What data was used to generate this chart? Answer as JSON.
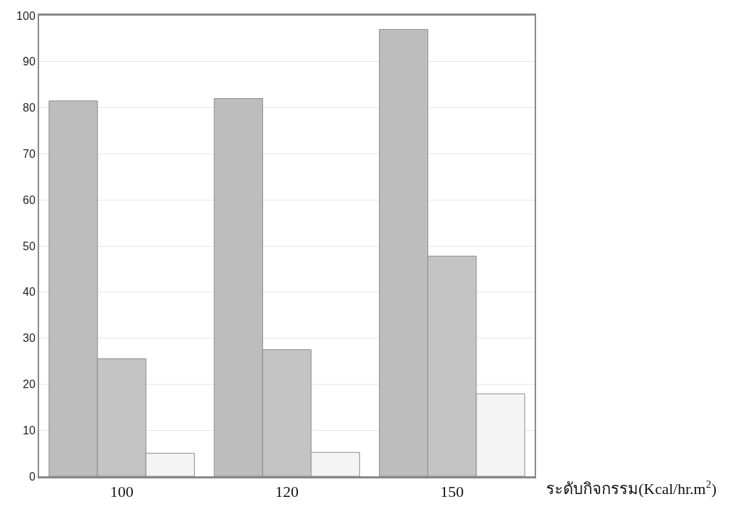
{
  "chart_data": {
    "type": "bar",
    "xlabel": "ระดับกิจกรรม(Kcal/hr.m$^{2}$)",
    "categories": [
      "100",
      "120",
      "150"
    ],
    "series": [
      {
        "color": "#bdbdbd",
        "values": [
          81.5,
          82,
          97
        ]
      },
      {
        "color": "#c4c4c4",
        "values": [
          25.5,
          27.5,
          47.8
        ]
      },
      {
        "color": "#f4f4f4",
        "values": [
          5,
          5.2,
          17.9
        ]
      }
    ],
    "ylim": [
      0,
      100
    ],
    "yticks": [
      0,
      10,
      20,
      30,
      40,
      50,
      60,
      70,
      80,
      90,
      100
    ],
    "grid": "y",
    "legend": false
  }
}
